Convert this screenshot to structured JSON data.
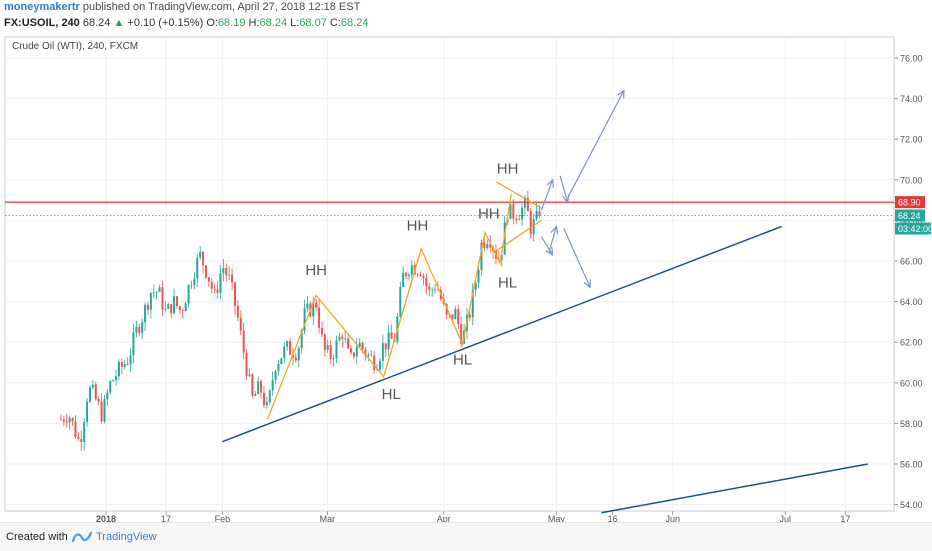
{
  "header": {
    "author": "moneymakertr",
    "published_text": "published on TradingView.com, April 27, 2018 12:18 EST",
    "symbol": "FX:USOIL, 240",
    "last": "68.24",
    "change_arrow": "▲",
    "change": "+0.10 (+0.15%)",
    "o_label": "O:",
    "o_value": "68.19",
    "h_label": "H:",
    "h_value": "68.24",
    "l_label": "L:",
    "l_value": "68.07",
    "c_label": "C:",
    "c_value": "68.24"
  },
  "footer": {
    "created_with": "Created with",
    "brand": "TradingView"
  },
  "colors": {
    "up": "#26a69a",
    "down": "#ef5350",
    "pattern": "#f5a623",
    "trend": "#1f4e8c",
    "resistance": "#e53935",
    "arrow": "#7d95c4",
    "annotation": "#555555"
  },
  "chart_data": {
    "type": "candlestick",
    "title": "Crude Oil (WTI), 240, FXCM",
    "ylim": [
      53.5,
      77
    ],
    "y_ticks": [
      "76.00",
      "74.00",
      "72.00",
      "70.00",
      "68.00",
      "66.00",
      "64.00",
      "62.00",
      "60.00",
      "58.00",
      "56.00",
      "54.00"
    ],
    "x_ticks": [
      "2018",
      "17",
      "Feb",
      "Mar",
      "Apr",
      "May",
      "16",
      "Jun",
      "Jul",
      "17"
    ],
    "price_labels": [
      {
        "text": "68.90",
        "value": 68.9,
        "color": "#e53935"
      },
      {
        "text": "68.24",
        "value": 68.24,
        "color": "#26a69a"
      },
      {
        "text": "03:42:00",
        "value": 67.6,
        "color": "#26a69a"
      }
    ],
    "resistance_level": 68.9,
    "last_price": 68.24,
    "swing_path": [
      {
        "date": "2018-02-13",
        "price": 58.2
      },
      {
        "date": "2018-02-26",
        "price": 64.3
      },
      {
        "date": "2018-03-16",
        "price": 60.3
      },
      {
        "date": "2018-03-26",
        "price": 66.6
      },
      {
        "date": "2018-04-06",
        "price": 61.9
      },
      {
        "date": "2018-04-12",
        "price": 67.4
      },
      {
        "date": "2018-04-16",
        "price": 65.9
      },
      {
        "date": "2018-04-19",
        "price": 69.3
      }
    ],
    "triangle_upper": [
      {
        "date": "2018-04-15",
        "price": 69.9
      },
      {
        "date": "2018-04-27",
        "price": 68.6
      }
    ],
    "triangle_lower": [
      {
        "date": "2018-04-15",
        "price": 66.5
      },
      {
        "date": "2018-04-27",
        "price": 68.0
      }
    ],
    "trendlines": [
      {
        "from": {
          "date": "2018-02-01",
          "price": 57.1
        },
        "to": {
          "date": "2018-06-30",
          "price": 67.7
        }
      },
      {
        "from": {
          "date": "2018-05-13",
          "price": 53.6
        },
        "to": {
          "date": "2018-07-23",
          "price": 56.0
        }
      }
    ],
    "annotations": [
      {
        "text": "HH",
        "date": "2018-02-26",
        "price": 65.3
      },
      {
        "text": "HL",
        "date": "2018-03-18",
        "price": 59.2
      },
      {
        "text": "HH",
        "date": "2018-03-25",
        "price": 67.5
      },
      {
        "text": "HL",
        "date": "2018-04-06",
        "price": 60.9
      },
      {
        "text": "HH",
        "date": "2018-04-13",
        "price": 68.1
      },
      {
        "text": "HL",
        "date": "2018-04-18",
        "price": 64.7
      },
      {
        "text": "HH",
        "date": "2018-04-18",
        "price": 70.3
      }
    ],
    "projection_arrows": [
      {
        "from": {
          "date": "2018-04-27",
          "price": 68.5
        },
        "to": {
          "date": "2018-04-30",
          "price": 70.0
        }
      },
      {
        "from": {
          "date": "2018-05-02",
          "price": 70.2
        },
        "to": {
          "date": "2018-05-04",
          "price": 68.9
        }
      },
      {
        "from": {
          "date": "2018-05-04",
          "price": 69.1
        },
        "to": {
          "date": "2018-05-19",
          "price": 74.4
        }
      },
      {
        "from": {
          "date": "2018-04-27",
          "price": 67.2
        },
        "to": {
          "date": "2018-04-30",
          "price": 66.3
        }
      },
      {
        "from": {
          "date": "2018-04-29",
          "price": 66.4
        },
        "to": {
          "date": "2018-05-01",
          "price": 67.7
        }
      },
      {
        "from": {
          "date": "2018-05-03",
          "price": 67.6
        },
        "to": {
          "date": "2018-05-10",
          "price": 64.7
        }
      }
    ],
    "price_path": [
      {
        "date": "2017-12-20",
        "price": 58.2
      },
      {
        "date": "2017-12-22",
        "price": 58.5
      },
      {
        "date": "2017-12-25",
        "price": 57.0
      },
      {
        "date": "2017-12-27",
        "price": 59.4
      },
      {
        "date": "2017-12-28",
        "price": 59.7
      },
      {
        "date": "2017-12-31",
        "price": 58.4
      },
      {
        "date": "2018-01-02",
        "price": 59.9
      },
      {
        "date": "2018-01-04",
        "price": 60.5
      },
      {
        "date": "2018-01-07",
        "price": 61.2
      },
      {
        "date": "2018-01-09",
        "price": 62.5
      },
      {
        "date": "2018-01-11",
        "price": 63.4
      },
      {
        "date": "2018-01-13",
        "price": 64.5
      },
      {
        "date": "2018-01-15",
        "price": 64.5
      },
      {
        "date": "2018-01-17",
        "price": 63.4
      },
      {
        "date": "2018-01-19",
        "price": 64.0
      },
      {
        "date": "2018-01-21",
        "price": 63.5
      },
      {
        "date": "2018-01-24",
        "price": 65.3
      },
      {
        "date": "2018-01-26",
        "price": 66.3
      },
      {
        "date": "2018-01-28",
        "price": 65.4
      },
      {
        "date": "2018-01-30",
        "price": 64.2
      },
      {
        "date": "2018-02-01",
        "price": 65.8
      },
      {
        "date": "2018-02-03",
        "price": 65.0
      },
      {
        "date": "2018-02-05",
        "price": 63.3
      },
      {
        "date": "2018-02-07",
        "price": 61.2
      },
      {
        "date": "2018-02-09",
        "price": 59.2
      },
      {
        "date": "2018-02-11",
        "price": 59.8
      },
      {
        "date": "2018-02-13",
        "price": 58.6
      },
      {
        "date": "2018-02-15",
        "price": 60.9
      },
      {
        "date": "2018-02-18",
        "price": 61.7
      },
      {
        "date": "2018-02-21",
        "price": 61.5
      },
      {
        "date": "2018-02-23",
        "price": 63.4
      },
      {
        "date": "2018-02-26",
        "price": 63.9
      },
      {
        "date": "2018-02-28",
        "price": 61.6
      },
      {
        "date": "2018-03-02",
        "price": 61.3
      },
      {
        "date": "2018-03-05",
        "price": 62.5
      },
      {
        "date": "2018-03-07",
        "price": 61.0
      },
      {
        "date": "2018-03-09",
        "price": 62.0
      },
      {
        "date": "2018-03-12",
        "price": 61.3
      },
      {
        "date": "2018-03-14",
        "price": 61.0
      },
      {
        "date": "2018-03-16",
        "price": 61.9
      },
      {
        "date": "2018-03-19",
        "price": 62.2
      },
      {
        "date": "2018-03-21",
        "price": 65.2
      },
      {
        "date": "2018-03-23",
        "price": 65.8
      },
      {
        "date": "2018-03-26",
        "price": 65.6
      },
      {
        "date": "2018-03-28",
        "price": 64.4
      },
      {
        "date": "2018-03-30",
        "price": 64.9
      },
      {
        "date": "2018-04-02",
        "price": 63.0
      },
      {
        "date": "2018-04-04",
        "price": 63.5
      },
      {
        "date": "2018-04-06",
        "price": 62.1
      },
      {
        "date": "2018-04-08",
        "price": 63.5
      },
      {
        "date": "2018-04-10",
        "price": 65.5
      },
      {
        "date": "2018-04-11",
        "price": 66.8
      },
      {
        "date": "2018-04-13",
        "price": 67.3
      },
      {
        "date": "2018-04-15",
        "price": 66.3
      },
      {
        "date": "2018-04-16",
        "price": 66.1
      },
      {
        "date": "2018-04-18",
        "price": 68.5
      },
      {
        "date": "2018-04-19",
        "price": 68.3
      },
      {
        "date": "2018-04-21",
        "price": 68.4
      },
      {
        "date": "2018-04-23",
        "price": 68.8
      },
      {
        "date": "2018-04-24",
        "price": 67.6
      },
      {
        "date": "2018-04-26",
        "price": 68.1
      },
      {
        "date": "2018-04-27",
        "price": 68.24
      }
    ]
  }
}
